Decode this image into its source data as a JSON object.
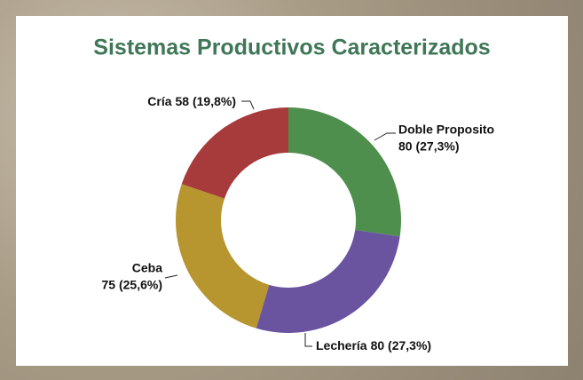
{
  "chart_data": {
    "type": "donut",
    "title": "Sistemas Productivos Caracterizados",
    "categories": [
      "Doble Proposito",
      "Lechería",
      "Ceba",
      "Cría"
    ],
    "values": [
      80,
      80,
      75,
      58
    ],
    "value_labels": [
      "80 (27,3%)",
      "80 (27,3%)",
      "75 (25,6%)",
      "58 (19,8%)"
    ],
    "colors": [
      "#4f8f4d",
      "#6a54a0",
      "#b7952f",
      "#a73a3a"
    ]
  }
}
